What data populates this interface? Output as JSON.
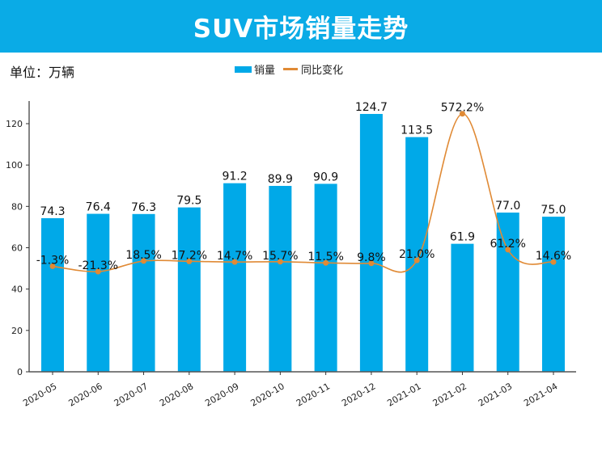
{
  "title": "SUV市场销量走势",
  "unit_label": "单位：万辆",
  "legend": {
    "bar": "销量",
    "line": "同比变化"
  },
  "colors": {
    "banner": "#0aabe6",
    "bar": "#00a9e8",
    "line": "#e08a35"
  },
  "chart_data": {
    "type": "bar",
    "title": "SUV市场销量走势",
    "xlabel": "",
    "ylabel": "万辆",
    "ylim": [
      0,
      130
    ],
    "yticks": [
      0,
      20,
      40,
      60,
      80,
      100,
      120
    ],
    "grid": false,
    "legend_position": "top-center",
    "categories": [
      "2020-05",
      "2020-06",
      "2020-07",
      "2020-08",
      "2020-09",
      "2020-10",
      "2020-11",
      "2020-12",
      "2021-01",
      "2021-02",
      "2021-03",
      "2021-04"
    ],
    "series": [
      {
        "name": "销量",
        "type": "bar",
        "values": [
          74.3,
          76.4,
          76.3,
          79.5,
          91.2,
          89.9,
          90.9,
          124.7,
          113.5,
          61.9,
          77.0,
          75.0
        ],
        "labels": [
          "74.3",
          "76.4",
          "76.3",
          "79.5",
          "91.2",
          "89.9",
          "90.9",
          "124.7",
          "113.5",
          "61.9",
          "77.0",
          "75.0"
        ]
      },
      {
        "name": "同比变化",
        "type": "line",
        "axis": "secondary",
        "unit": "%",
        "values": [
          -1.3,
          -21.3,
          18.5,
          17.2,
          14.7,
          15.7,
          11.5,
          9.8,
          21.0,
          572.2,
          61.2,
          14.6
        ],
        "labels": [
          "-1.3%",
          "-21.3%",
          "18.5%",
          "17.2%",
          "14.7%",
          "15.7%",
          "11.5%",
          "9.8%",
          "21.0%",
          "572.2%",
          "61.2%",
          "14.6%"
        ]
      }
    ]
  }
}
